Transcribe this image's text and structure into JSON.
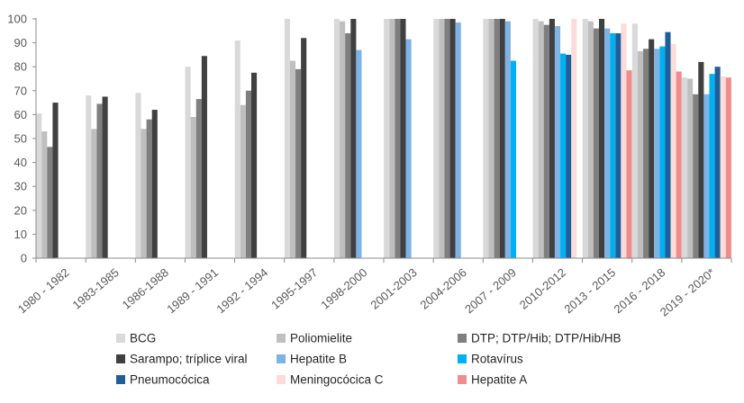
{
  "chart_data": {
    "type": "bar",
    "title": "",
    "xlabel": "",
    "ylabel": "",
    "ylim": [
      0,
      100
    ],
    "yticks": [
      0,
      10,
      20,
      30,
      40,
      50,
      60,
      70,
      80,
      90,
      100
    ],
    "grid": false,
    "legend_position": "bottom",
    "categories": [
      "1980 - 1982",
      "1983-1985",
      "1986-1988",
      "1989 - 1991",
      "1992 - 1994",
      "1995-1997",
      "1998-2000",
      "2001-2003",
      "2004-2006",
      "2007 - 2009",
      "2010-2012",
      "2013 - 2015",
      "2016 - 2018",
      "2019 - 2020*"
    ],
    "series": [
      {
        "name": "BCG",
        "color": "#d9d9d9",
        "values": [
          60.5,
          68,
          69,
          80,
          91,
          100,
          100,
          100,
          100,
          100,
          100,
          100,
          98,
          75.5
        ]
      },
      {
        "name": "Poliomielite",
        "color": "#bfbfbf",
        "values": [
          53,
          54,
          54,
          59,
          64,
          82.5,
          99,
          100,
          100,
          100,
          99,
          99,
          86.5,
          75
        ]
      },
      {
        "name": "DTP; DTP/Hib; DTP/Hib/HB",
        "color": "#7f7f7f",
        "values": [
          46.5,
          64.5,
          58,
          66.5,
          70,
          79,
          94,
          100,
          100,
          100,
          97.5,
          96,
          87.5,
          68.5
        ]
      },
      {
        "name": "Sarampo; tríplice viral",
        "color": "#404040",
        "values": [
          65,
          67.5,
          62,
          84.5,
          77.5,
          92,
          100,
          100,
          100,
          100,
          100,
          100,
          91.5,
          82
        ]
      },
      {
        "name": "Hepatite B",
        "color": "#7fb2e5",
        "values": [
          null,
          null,
          null,
          null,
          null,
          null,
          87,
          91.5,
          98.5,
          99,
          97,
          96,
          87.5,
          68.5
        ]
      },
      {
        "name": "Rotavírus",
        "color": "#00b0f0",
        "values": [
          null,
          null,
          null,
          null,
          null,
          null,
          null,
          null,
          null,
          82.5,
          85.5,
          94,
          88.5,
          77
        ]
      },
      {
        "name": "Pneumocócica",
        "color": "#1f5f99",
        "values": [
          null,
          null,
          null,
          null,
          null,
          null,
          null,
          null,
          null,
          null,
          85,
          94,
          94.5,
          80
        ]
      },
      {
        "name": "Meningocócica C",
        "color": "#fcdbdb",
        "values": [
          null,
          null,
          null,
          null,
          null,
          null,
          null,
          null,
          null,
          null,
          100,
          98,
          89.5,
          76
        ]
      },
      {
        "name": "Hepatite A",
        "color": "#f08c8c",
        "values": [
          null,
          null,
          null,
          null,
          null,
          null,
          null,
          null,
          null,
          null,
          null,
          78.5,
          78,
          75.5
        ]
      }
    ]
  }
}
